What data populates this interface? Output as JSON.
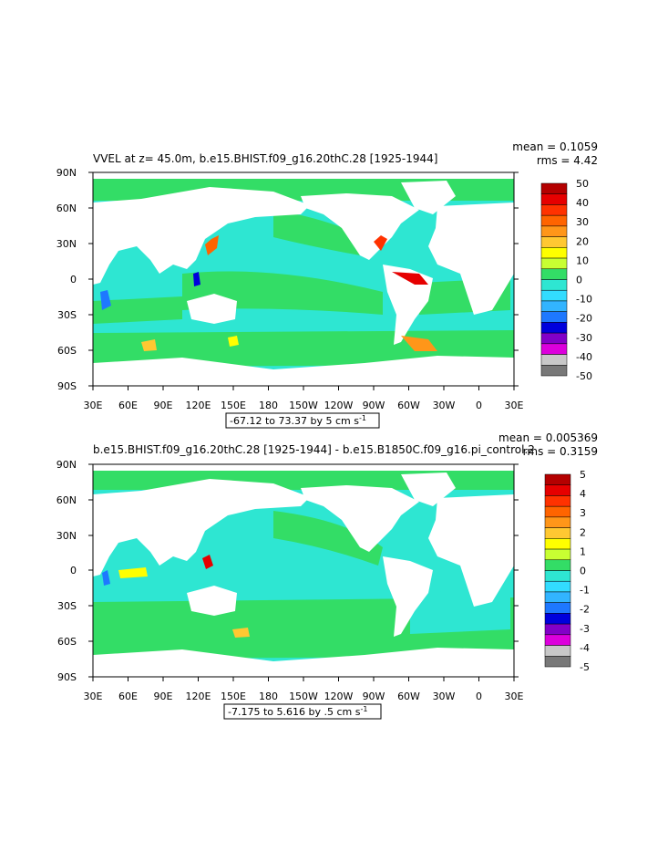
{
  "colors": {
    "land": "#ffffff",
    "ocean_fill": "#2ee6d2",
    "ocean_green": "#33dd66"
  },
  "panels": [
    {
      "title": "VVEL at z=  45.0m, b.e15.BHIST.f09_g16.20thC.28  [1925-1944]",
      "mean_label": "mean = 0.1059",
      "rms_label": "rms = 4.42",
      "contour_info": "-67.12 to 73.37 by 5 cm s",
      "contour_exp": "-1",
      "lat_labels": [
        "90N",
        "60N",
        "30N",
        "0",
        "30S",
        "60S",
        "90S"
      ],
      "lon_labels": [
        "30E",
        "60E",
        "90E",
        "120E",
        "150E",
        "180",
        "150W",
        "120W",
        "90W",
        "60W",
        "30W",
        "0",
        "30E"
      ],
      "colorbar": {
        "labels": [
          "50",
          "40",
          "30",
          "20",
          "10",
          "0",
          "-10",
          "-20",
          "-30",
          "-40",
          "-50"
        ],
        "colors": [
          "#b40000",
          "#e60000",
          "#ff3200",
          "#ff6400",
          "#ff9619",
          "#ffc832",
          "#ffff00",
          "#c8ff32",
          "#33dd66",
          "#2ee6d2",
          "#32dcff",
          "#32b4ff",
          "#1e78ff",
          "#0000dc",
          "#8200c8",
          "#dc00dc",
          "#c8c8c8",
          "#787878"
        ]
      }
    },
    {
      "title": "b.e15.BHIST.f09_g16.20thC.28  [1925-1944]  -  b.e15.B1850C.f09_g16.pi_control.2",
      "mean_label": "mean = 0.005369",
      "rms_label": "rms = 0.3159",
      "contour_info": "-7.175 to 5.616 by .5 cm s",
      "contour_exp": "-1",
      "lat_labels": [
        "90N",
        "60N",
        "30N",
        "0",
        "30S",
        "60S",
        "90S"
      ],
      "lon_labels": [
        "30E",
        "60E",
        "90E",
        "120E",
        "150E",
        "180",
        "150W",
        "120W",
        "90W",
        "60W",
        "30W",
        "0",
        "30E"
      ],
      "colorbar": {
        "labels": [
          "5",
          "4",
          "3",
          "2",
          "1",
          "0",
          "-1",
          "-2",
          "-3",
          "-4",
          "-5"
        ],
        "colors": [
          "#b40000",
          "#e60000",
          "#ff3200",
          "#ff6400",
          "#ff9619",
          "#ffc832",
          "#ffff00",
          "#c8ff32",
          "#33dd66",
          "#2ee6d2",
          "#32dcff",
          "#32b4ff",
          "#1e78ff",
          "#0000dc",
          "#8200c8",
          "#dc00dc",
          "#c8c8c8",
          "#787878"
        ]
      }
    }
  ]
}
